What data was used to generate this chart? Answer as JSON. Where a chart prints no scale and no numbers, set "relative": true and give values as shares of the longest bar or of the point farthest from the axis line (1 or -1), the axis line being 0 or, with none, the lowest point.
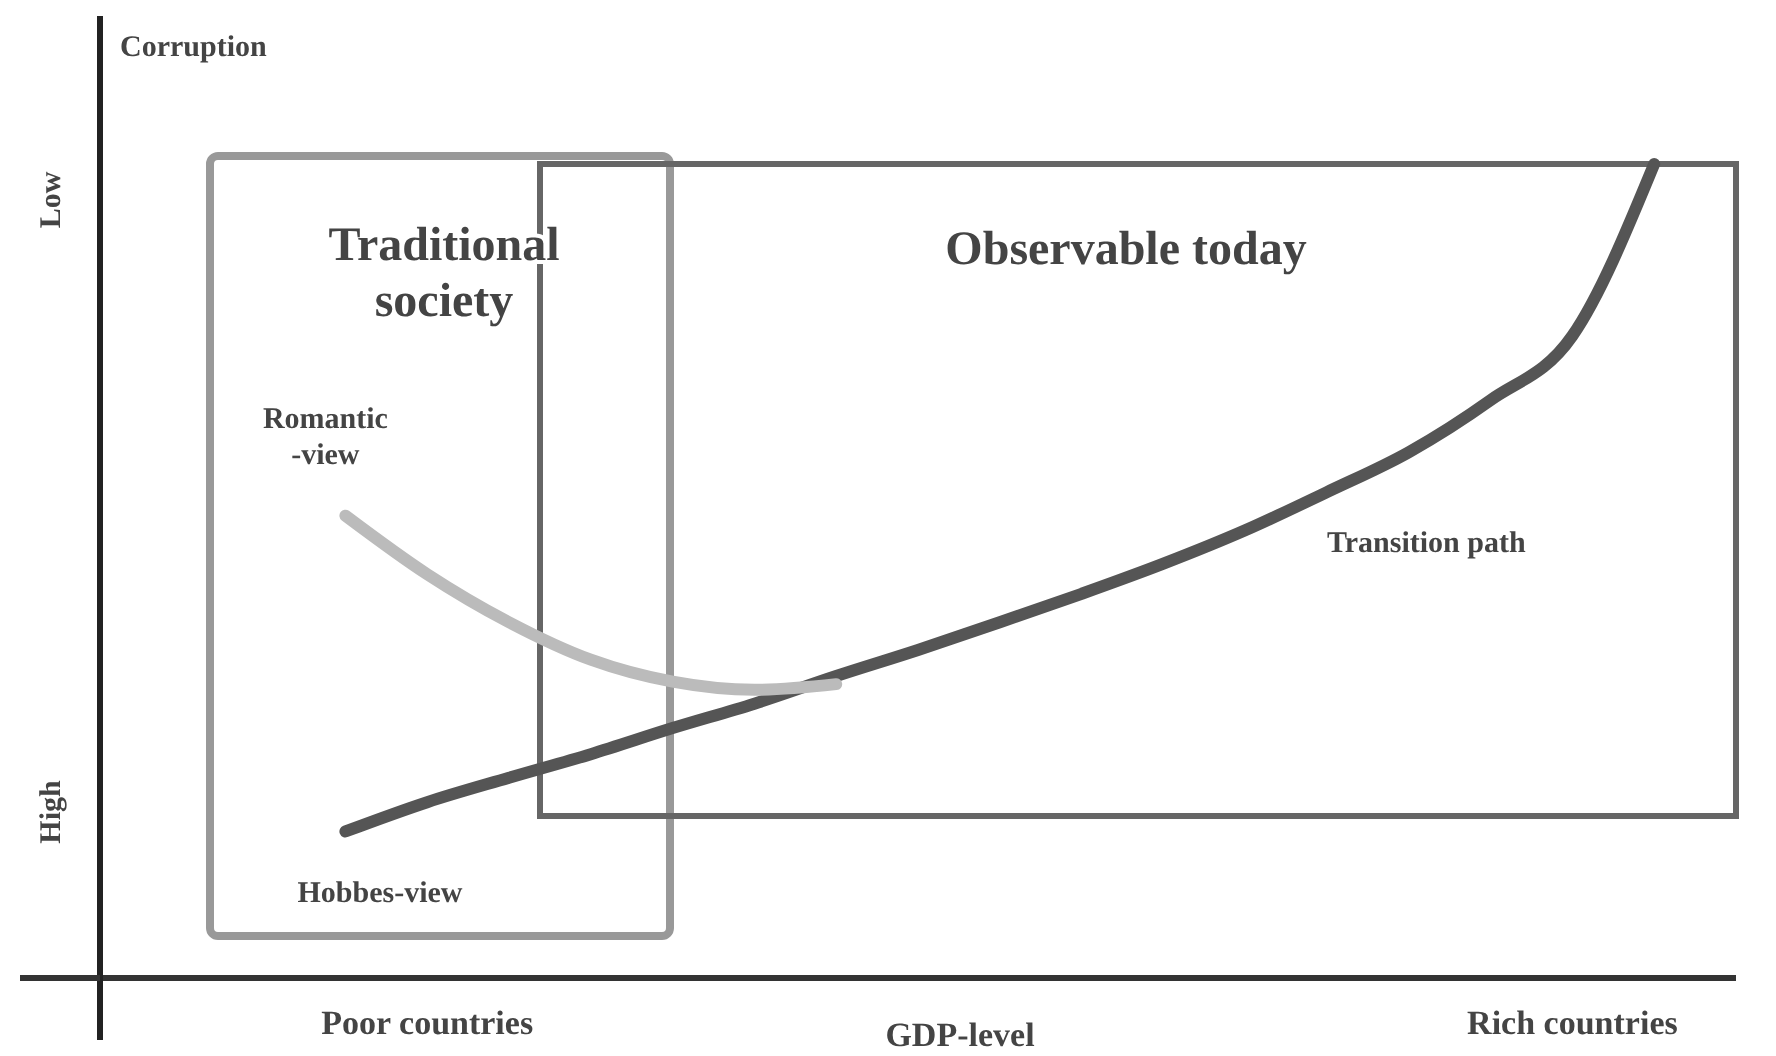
{
  "chart_data": {
    "type": "line",
    "relative": true,
    "ylabel": "Corruption",
    "xlabel": "GDP-level",
    "categories": [
      null,
      null,
      null,
      null,
      "Poor countries",
      null,
      null,
      null,
      null,
      null,
      null,
      null,
      null,
      null,
      null,
      null,
      null,
      null,
      "Rich countries",
      null,
      null
    ],
    "grid": false,
    "legend": false,
    "line_style": "solid",
    "marker": "none",
    "series": [
      {
        "name": "Transition path",
        "color": "#555555",
        "values": [
          null,
          null,
          null,
          0.18,
          0.216,
          0.246,
          0.275,
          0.307,
          0.337,
          0.371,
          0.403,
          0.437,
          0.472,
          0.509,
          0.55,
          0.597,
          0.646,
          0.71,
          0.789,
          1,
          null
        ]
      },
      {
        "name": "Romantic -view",
        "color": "#bbbbbb",
        "values": [
          null,
          null,
          null,
          0.568,
          0.496,
          0.437,
          0.391,
          0.364,
          0.354,
          0.361,
          null,
          null,
          null,
          null,
          null,
          null,
          null,
          null,
          null,
          null,
          null
        ]
      }
    ],
    "annotations": [
      "Low",
      "High",
      "Traditional society",
      "Observable today",
      "Hobbes-view"
    ]
  }
}
